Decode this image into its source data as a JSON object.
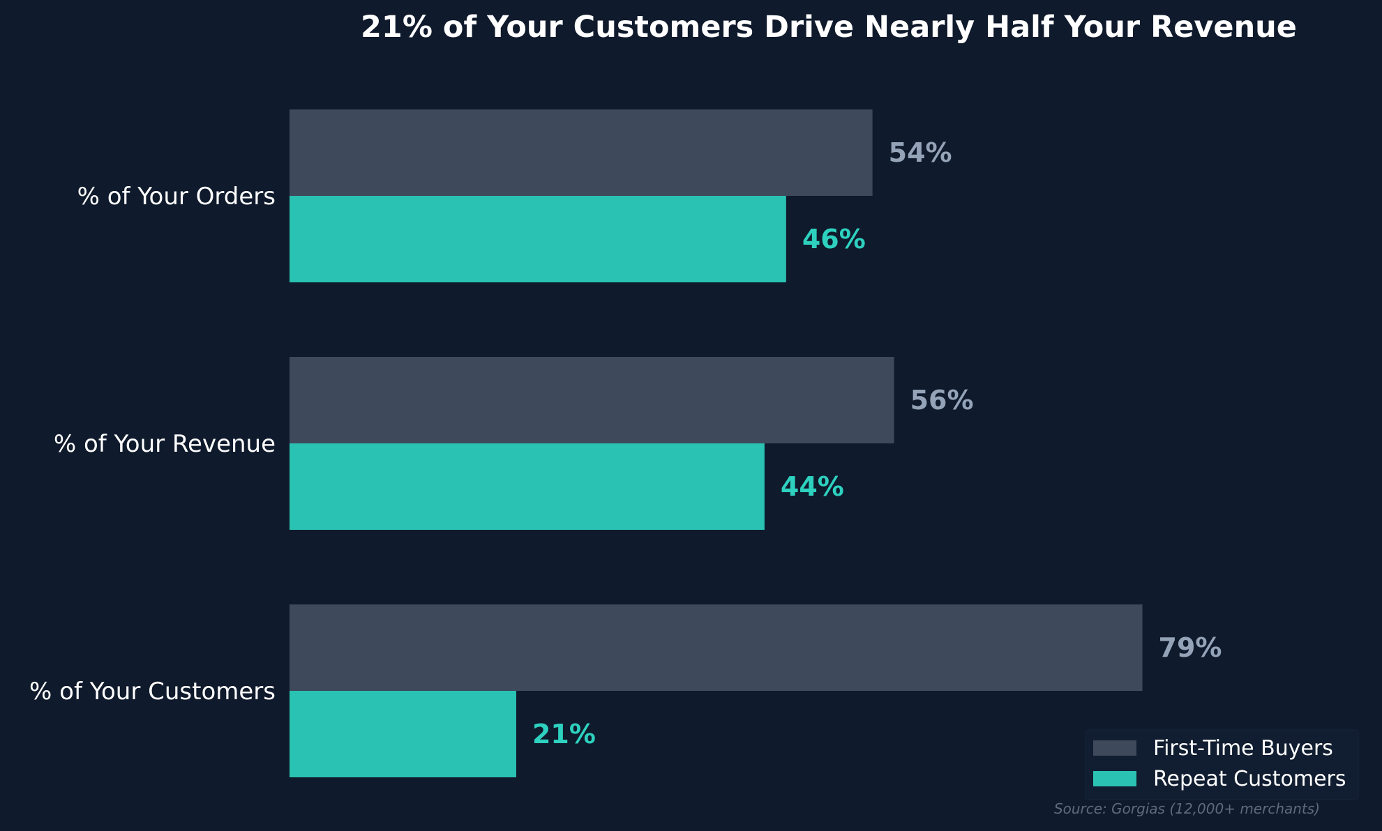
{
  "chart_data": {
    "type": "bar",
    "orientation": "horizontal",
    "title": "21% of Your Customers Drive Nearly Half Your Revenue",
    "categories": [
      "% of Your Orders",
      "% of Your Revenue",
      "% of Your Customers"
    ],
    "series": [
      {
        "name": "First-Time Buyers",
        "values": [
          54,
          56,
          79
        ],
        "labels": [
          "54%",
          "56%",
          "79%"
        ],
        "color": "#3e4a5c",
        "label_color": "#94a3b8"
      },
      {
        "name": "Repeat Customers",
        "values": [
          46,
          44,
          21
        ],
        "labels": [
          "46%",
          "44%",
          "21%"
        ],
        "color": "#2ac2b2",
        "label_color": "#2ed1bf"
      }
    ],
    "xlim": [
      0,
      100
    ],
    "grid": false,
    "legend_position": "bottom-right",
    "source": "Source: Gorgias (12,000+ merchants)"
  },
  "colors": {
    "background": "#0f1a2c",
    "legend_background": "#111d30",
    "text": "#ffffff"
  }
}
